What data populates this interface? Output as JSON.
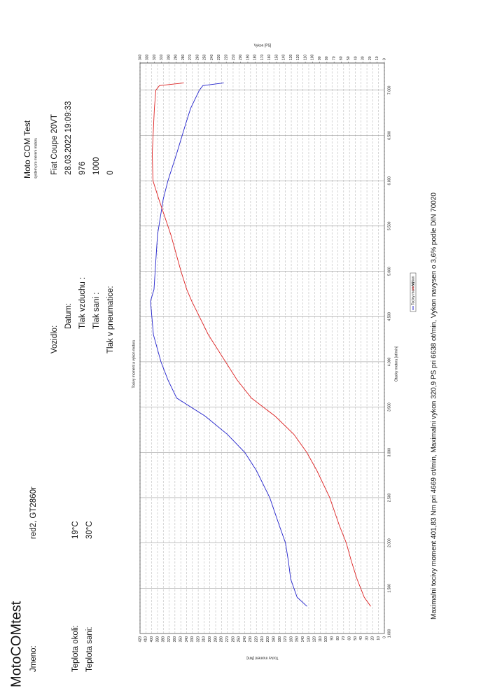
{
  "header": {
    "brand": "MotoCOMtest",
    "product": "Moto COM Test",
    "product_subtitle": "system pro mereni motoru"
  },
  "fields": {
    "name_label": "Jmeno:",
    "name_value": "red2, GT2860r",
    "ambient_label": "Teplota okoli:",
    "ambient_value": "19°C",
    "intake_temp_label": "Teplota sani:",
    "intake_temp_value": "30°C",
    "vehicle_label": "Vozidlo:",
    "vehicle_value": "Fiat Coupe 20VT",
    "date_label": "Datum:",
    "date_value": "28.03.2022 19:09:33",
    "air_pressure_label": "Tlak vzduchu :",
    "air_pressure_value": "976",
    "intake_pressure_label": "Tlak sani :",
    "intake_pressure_value": "1000",
    "tire_pressure_label": "Tlak v pneumatice:",
    "tire_pressure_value": "0"
  },
  "footer": "Maximalni tocivy moment 401,83 Nm pri 4669 ot/min,  Maximalni vykon 320,9 PS pri 6638 ot/min,  Vykon navysen o 3,6% podle DIN 70020",
  "chart_data": {
    "type": "line",
    "title": "Tocivy moment a vykon motoru",
    "x_label": "Otacky motoru [ot/min]",
    "y_label": "Tocivy moment [Nm]",
    "y2_label": "Vykon [PS]",
    "grid": true,
    "x": [
      1300,
      1400,
      1600,
      1800,
      2000,
      2200,
      2500,
      2800,
      3000,
      3200,
      3400,
      3600,
      3800,
      4000,
      4300,
      4669,
      4800,
      5000,
      5400,
      5800,
      6000,
      6300,
      6638,
      6800,
      7000,
      7050,
      7080
    ],
    "series": [
      {
        "name": "Tocivy moment",
        "color": "#2222cc",
        "values": [
          133,
          150,
          161,
          165,
          170,
          181,
          197,
          220,
          240,
          270,
          308,
          357,
          372,
          384,
          397,
          402,
          396,
          394,
          390,
          380,
          372,
          357,
          341,
          333,
          318,
          312,
          276
        ]
      },
      {
        "name": "Vykon",
        "color": "#dd2222",
        "axis": "y2",
        "values": [
          19,
          28,
          38,
          46,
          53,
          63,
          76,
          94,
          108,
          126,
          152,
          185,
          205,
          221,
          245,
          268,
          275,
          283,
          297,
          314,
          322,
          323,
          321,
          320,
          318,
          313,
          279
        ]
      }
    ],
    "xlim": [
      1000,
      7300
    ],
    "xticks": [
      {
        "value": 1000,
        "label": "1.000"
      },
      {
        "value": 1500,
        "label": "1.500"
      },
      {
        "value": 2000,
        "label": "2.000"
      },
      {
        "value": 2500,
        "label": "2.500"
      },
      {
        "value": 3000,
        "label": "3.000"
      },
      {
        "value": 3500,
        "label": "3.500"
      },
      {
        "value": 4000,
        "label": "4.000"
      },
      {
        "value": 4500,
        "label": "4.500"
      },
      {
        "value": 5000,
        "label": "5.000"
      },
      {
        "value": 5500,
        "label": "5.500"
      },
      {
        "value": 6000,
        "label": "6.000"
      },
      {
        "value": 6500,
        "label": "6.500"
      },
      {
        "value": 7000,
        "label": "7.000"
      }
    ],
    "ylim": [
      0,
      420
    ],
    "yticks": [
      0,
      10,
      20,
      30,
      40,
      50,
      60,
      70,
      80,
      90,
      100,
      110,
      120,
      130,
      140,
      150,
      160,
      170,
      180,
      190,
      200,
      210,
      220,
      230,
      240,
      250,
      260,
      270,
      280,
      290,
      300,
      310,
      320,
      330,
      340,
      350,
      360,
      370,
      380,
      390,
      400,
      410,
      420
    ],
    "y2lim": [
      0,
      340
    ],
    "y2ticks": [
      0,
      10,
      20,
      30,
      40,
      50,
      60,
      70,
      80,
      90,
      100,
      110,
      120,
      130,
      140,
      150,
      160,
      170,
      180,
      190,
      200,
      210,
      220,
      230,
      240,
      250,
      260,
      270,
      280,
      290,
      300,
      310,
      320,
      330,
      340
    ]
  }
}
